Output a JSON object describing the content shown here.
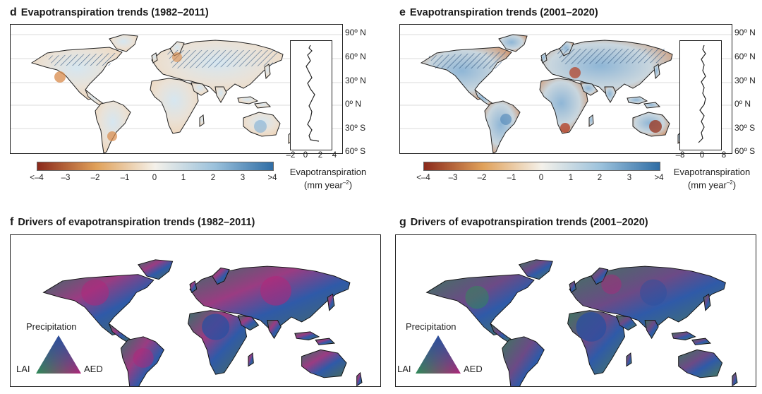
{
  "panels": {
    "d": {
      "letter": "d",
      "title": "Evapotranspiration trends (1982–2011)",
      "lat_labels": [
        "90º N",
        "60º N",
        "30º N",
        "0º N",
        "30º S",
        "60º S"
      ],
      "colorbar_ticks": [
        "<–4",
        "–3",
        "–2",
        "–1",
        "0",
        "1",
        "2",
        "3",
        ">4"
      ],
      "colorbar_title": "Evapotranspiration",
      "colorbar_unit": "(mm year",
      "colorbar_unit_exp": "–2",
      "colorbar_unit_close": ")",
      "inset_ticks": [
        "–2",
        "0",
        "2",
        "4"
      ]
    },
    "e": {
      "letter": "e",
      "title": "Evapotranspiration trends (2001–2020)",
      "lat_labels": [
        "90º N",
        "60º N",
        "30º N",
        "0º N",
        "30º S",
        "60º S"
      ],
      "colorbar_ticks": [
        "<–4",
        "–3",
        "–2",
        "–1",
        "0",
        "1",
        "2",
        "3",
        ">4"
      ],
      "colorbar_title": "Evapotranspiration",
      "colorbar_unit": "(mm year",
      "colorbar_unit_exp": "–2",
      "colorbar_unit_close": ")",
      "inset_ticks": [
        "–8",
        "0",
        "8"
      ]
    },
    "f": {
      "letter": "f",
      "title": "Drivers of evapotranspiration trends (1982–2011)",
      "triangle": {
        "top": "Precipitation",
        "left": "LAI",
        "right": "AED"
      }
    },
    "g": {
      "letter": "g",
      "title": "Drivers of evapotranspiration trends (2001–2020)",
      "triangle": {
        "top": "Precipitation",
        "left": "LAI",
        "right": "AED"
      }
    }
  },
  "colors": {
    "neg_dark": "#8b2a1c",
    "neg_mid": "#e0a15a",
    "neutral": "#f4f1ea",
    "pos_mid": "#9cc2dc",
    "pos_dark": "#2f6da5",
    "driver_lai": "#2e8b57",
    "driver_precip": "#2a4fa0",
    "driver_aed": "#b0267a"
  }
}
